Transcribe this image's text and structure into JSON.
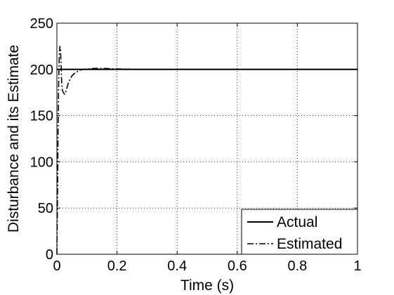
{
  "chart_data": {
    "type": "line",
    "title": "",
    "xlabel": "Time (s)",
    "ylabel": "Disturbance and its Estimate",
    "xlim": [
      0,
      1
    ],
    "ylim": [
      0,
      250
    ],
    "xticks": [
      0,
      0.2,
      0.4,
      0.6,
      0.8,
      1
    ],
    "xtick_labels": [
      "0",
      "0.2",
      "0.4",
      "0.6",
      "0.8",
      "1"
    ],
    "yticks": [
      0,
      50,
      100,
      150,
      200,
      250
    ],
    "ytick_labels": [
      "0",
      "50",
      "100",
      "150",
      "200",
      "250"
    ],
    "grid": true,
    "legend_position": "bottom-right",
    "series": [
      {
        "name": "Actual",
        "line_style": "solid",
        "color": "#000000",
        "x": [
          0,
          1
        ],
        "y": [
          200,
          200
        ]
      },
      {
        "name": "Estimated",
        "line_style": "dash-dot",
        "color": "#000000",
        "x": [
          0,
          0.002,
          0.004,
          0.006,
          0.008,
          0.01,
          0.012,
          0.014,
          0.016,
          0.018,
          0.02,
          0.022,
          0.025,
          0.03,
          0.035,
          0.04,
          0.05,
          0.06,
          0.07,
          0.08,
          0.1,
          0.12,
          0.14,
          0.16,
          0.18,
          0.2,
          0.22,
          0.24
        ],
        "y": [
          0,
          60,
          140,
          190,
          215,
          225,
          222,
          205,
          185,
          178,
          176,
          175,
          173,
          176,
          182,
          187,
          193,
          196,
          198,
          199.5,
          200.5,
          201,
          201.2,
          201,
          200.8,
          200.5,
          200.5,
          200.3
        ]
      }
    ]
  }
}
